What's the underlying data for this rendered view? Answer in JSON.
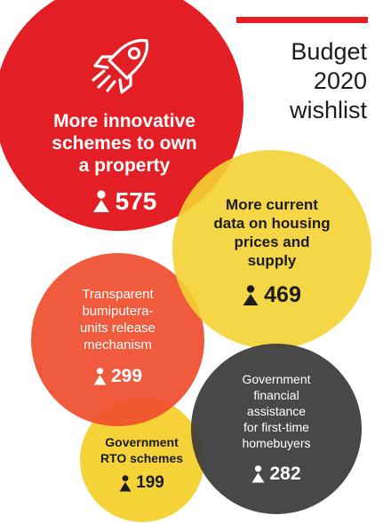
{
  "header": {
    "title_lines": [
      "Budget",
      "2020",
      "wishlist"
    ]
  },
  "colors": {
    "red": "#e31e24",
    "yellow": "#f4d132",
    "orange": "#ef4d2e",
    "dark": "#3a3a3a",
    "accent_bar": "#e31e24"
  },
  "icons": {
    "main": "rocket-icon",
    "count": "person-icon"
  },
  "items": [
    {
      "label_lines": [
        "More innovative",
        "schemes to own",
        "a property"
      ],
      "count": "575"
    },
    {
      "label_lines": [
        "More current",
        "data on housing",
        "prices and",
        "supply"
      ],
      "count": "469"
    },
    {
      "label_lines": [
        "Transparent",
        "bumiputera-",
        "units release",
        "mechanism"
      ],
      "count": "299"
    },
    {
      "label_lines": [
        "Government",
        "financial",
        "assistance",
        "for first-time",
        "homebuyers"
      ],
      "count": "282"
    },
    {
      "label_lines": [
        "Government",
        "RTO schemes"
      ],
      "count": "199"
    }
  ]
}
